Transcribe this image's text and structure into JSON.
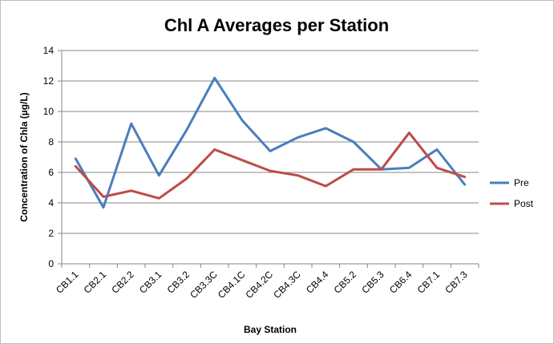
{
  "chart_data": {
    "type": "line",
    "title": "Chl A Averages per Station",
    "xlabel": "Bay Station",
    "ylabel": "Concentration of Chla (µg/L)",
    "ylim": [
      0,
      14
    ],
    "yticks": [
      0,
      2,
      4,
      6,
      8,
      10,
      12,
      14
    ],
    "grid": true,
    "legend_position": "right",
    "categories": [
      "CB1.1",
      "CB2.1",
      "CB2.2",
      "CB3.1",
      "CB3.2",
      "CB3.3C",
      "CB4.1C",
      "CB4.2C",
      "CB4.3C",
      "CB4.4",
      "CB5.2",
      "CB5.3",
      "CB6.4",
      "CB7.1",
      "CB7.3"
    ],
    "series": [
      {
        "name": "Pre",
        "color": "#4a7ebb",
        "values": [
          6.9,
          3.7,
          9.2,
          5.8,
          8.8,
          12.2,
          9.4,
          7.4,
          8.3,
          8.9,
          8.0,
          6.2,
          6.3,
          7.5,
          5.2
        ]
      },
      {
        "name": "Post",
        "color": "#be4b48",
        "values": [
          6.4,
          4.4,
          4.8,
          4.3,
          5.6,
          7.5,
          6.8,
          6.1,
          5.8,
          5.1,
          6.2,
          6.2,
          8.6,
          6.3,
          5.7
        ]
      }
    ],
    "gridline_color": "#878787",
    "axis_color": "#878787"
  }
}
